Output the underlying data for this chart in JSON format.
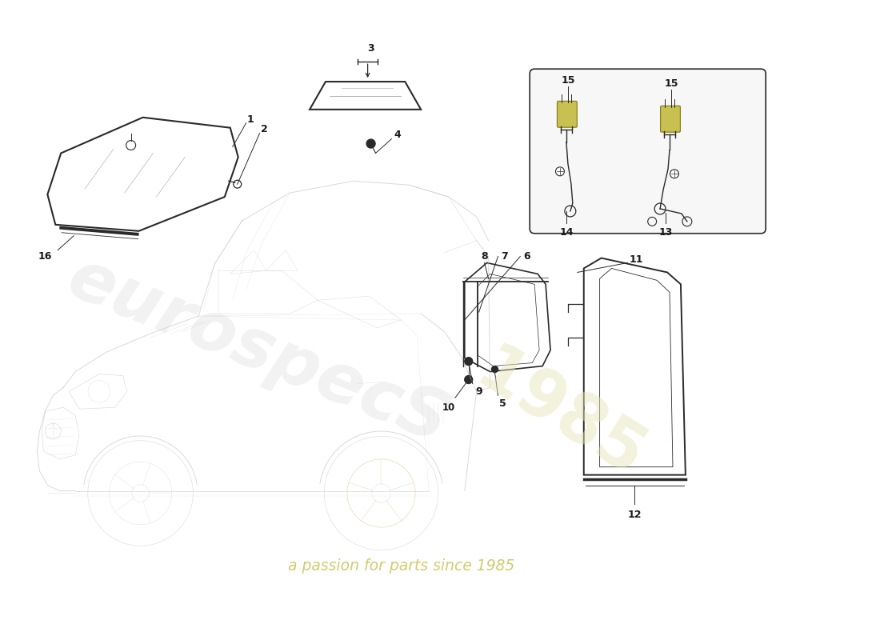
{
  "bg_color": "#ffffff",
  "line_color": "#2a2a2a",
  "car_color": "#bbbbbb",
  "label_color": "#1a1a1a",
  "wm_text1": "eurospecS",
  "wm_text2": "a passion for parts since 1985",
  "wm_color1": "#cccccc",
  "wm_color2": "#c8c050",
  "wm_year": "1985",
  "figsize": [
    11.0,
    8.0
  ],
  "dpi": 100,
  "xlim": [
    0,
    11
  ],
  "ylim": [
    0,
    8
  ]
}
